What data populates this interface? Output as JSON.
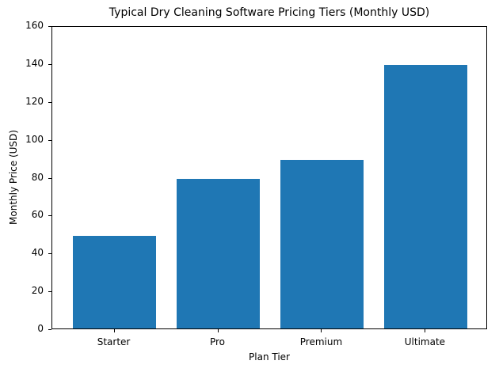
{
  "chart_data": {
    "type": "bar",
    "title": "Typical Dry Cleaning Software Pricing Tiers (Monthly USD)",
    "xlabel": "Plan Tier",
    "ylabel": "Monthly Price (USD)",
    "categories": [
      "Starter",
      "Pro",
      "Premium",
      "Ultimate"
    ],
    "values": [
      49,
      79,
      89,
      139
    ],
    "ylim": [
      0,
      160
    ],
    "yticks": [
      0,
      20,
      40,
      60,
      80,
      100,
      120,
      140,
      160
    ],
    "grid": false,
    "legend": null,
    "bar_color": "#1f77b4"
  }
}
